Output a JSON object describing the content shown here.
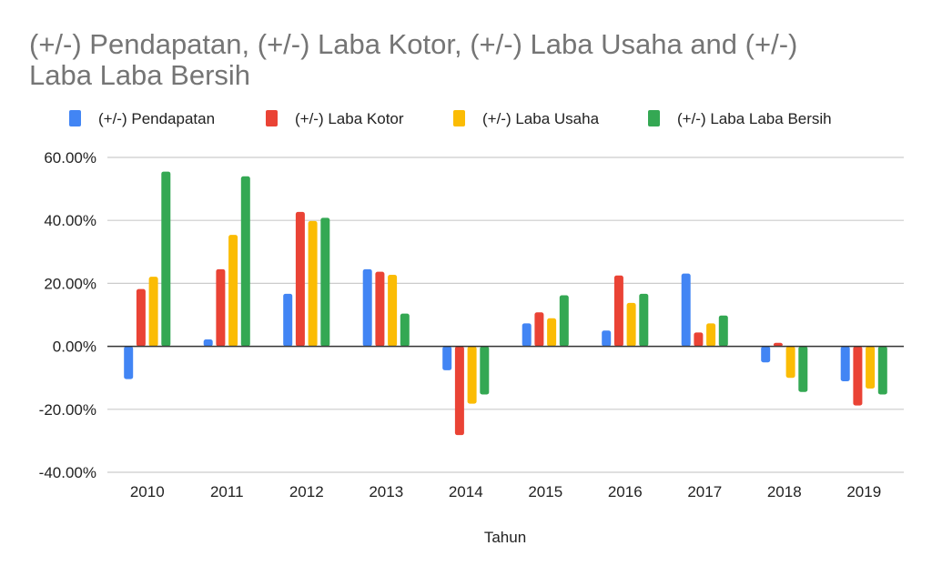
{
  "chart_data": {
    "type": "bar",
    "title_lines": [
      "(+/-) Pendapatan, (+/-) Laba Kotor, (+/-) Laba Usaha and (+/-)",
      "Laba Laba Bersih"
    ],
    "xlabel": "Tahun",
    "ylabel": "",
    "ylim": [
      -40,
      60
    ],
    "yticks": [
      60,
      40,
      20,
      0,
      -20,
      -40
    ],
    "ytick_labels": [
      "60.00%",
      "40.00%",
      "20.00%",
      "0.00%",
      "-20.00%",
      "-40.00%"
    ],
    "grid": true,
    "legend_position": "top",
    "categories": [
      "2010",
      "2011",
      "2012",
      "2013",
      "2014",
      "2015",
      "2016",
      "2017",
      "2018",
      "2019"
    ],
    "series": [
      {
        "name": "(+/-) Pendapatan",
        "color": "#4285f4",
        "values": [
          -10.4,
          2.2,
          16.7,
          24.5,
          -7.6,
          7.3,
          5.0,
          23.1,
          -5.1,
          -11.1
        ]
      },
      {
        "name": "(+/-) Laba Kotor",
        "color": "#ea4335",
        "values": [
          18.2,
          24.5,
          42.7,
          23.7,
          -28.2,
          10.8,
          22.5,
          4.4,
          1.1,
          -18.8
        ]
      },
      {
        "name": "(+/-) Laba Usaha",
        "color": "#fbbc04",
        "values": [
          22.1,
          35.4,
          39.8,
          22.7,
          -18.2,
          8.9,
          13.8,
          7.3,
          -10.0,
          -13.4
        ]
      },
      {
        "name": "(+/-) Laba Laba Bersih",
        "color": "#34a853",
        "values": [
          55.5,
          54.0,
          40.8,
          10.4,
          -15.3,
          16.2,
          16.7,
          9.8,
          -14.5,
          -15.3
        ]
      }
    ]
  }
}
